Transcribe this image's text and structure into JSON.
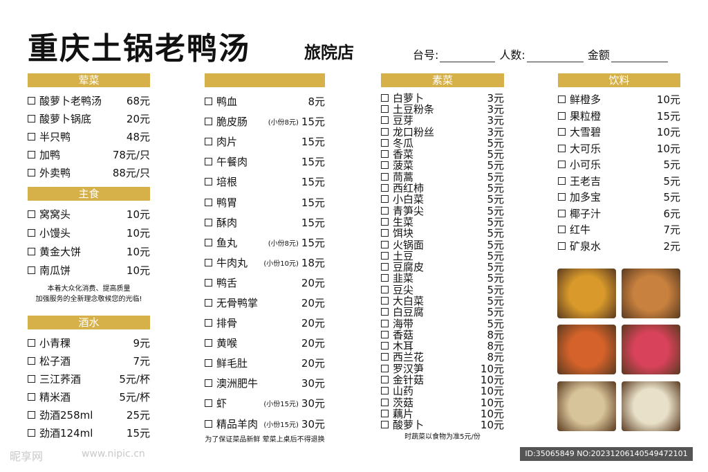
{
  "header": {
    "title": "重庆土锅老鸭汤",
    "branch": "旅院店",
    "fields": [
      {
        "label": "台号:"
      },
      {
        "label": "人数:"
      },
      {
        "label": "金额"
      }
    ]
  },
  "columns": {
    "meat": {
      "title": "荤菜",
      "items": [
        {
          "name": "酸萝卜老鸭汤",
          "price": "68元"
        },
        {
          "name": "酸萝卜锅底",
          "price": "20元"
        },
        {
          "name": "半只鸭",
          "price": "48元"
        },
        {
          "name": "加鸭",
          "price": "78元/只"
        },
        {
          "name": "外卖鸭",
          "price": "88元/只"
        }
      ]
    },
    "staple": {
      "title": "主食",
      "items": [
        {
          "name": "窝窝头",
          "price": "10元"
        },
        {
          "name": "小馒头",
          "price": "10元"
        },
        {
          "name": "黄金大饼",
          "price": "10元"
        },
        {
          "name": "南瓜饼",
          "price": "10元"
        }
      ],
      "note1": "本着大众化消费、提高质量",
      "note2": "加强服务的全新理念敬候您的光临!"
    },
    "alcohol": {
      "title": "酒水",
      "items": [
        {
          "name": "小青稞",
          "price": "9元"
        },
        {
          "name": "松子酒",
          "price": "7元"
        },
        {
          "name": "三江荞酒",
          "price": "5元/杯"
        },
        {
          "name": "精米酒",
          "price": "5元/杯"
        },
        {
          "name": "劲酒258ml",
          "price": "25元"
        },
        {
          "name": "劲酒124ml",
          "price": "15元"
        }
      ]
    },
    "col2": {
      "items": [
        {
          "name": "鸭血",
          "note": "",
          "price": "8元"
        },
        {
          "name": "脆皮肠",
          "note": "(小份8元)",
          "price": "15元"
        },
        {
          "name": "肉片",
          "note": "",
          "price": "15元"
        },
        {
          "name": "午餐肉",
          "note": "",
          "price": "15元"
        },
        {
          "name": "培根",
          "note": "",
          "price": "15元"
        },
        {
          "name": "鸭胃",
          "note": "",
          "price": "15元"
        },
        {
          "name": "酥肉",
          "note": "",
          "price": "15元"
        },
        {
          "name": "鱼丸",
          "note": "(小份8元)",
          "price": "15元"
        },
        {
          "name": "牛肉丸",
          "note": "(小份10元)",
          "price": "18元"
        },
        {
          "name": "鸭舌",
          "note": "",
          "price": "20元"
        },
        {
          "name": "无骨鸭掌",
          "note": "",
          "price": "20元"
        },
        {
          "name": "排骨",
          "note": "",
          "price": "20元"
        },
        {
          "name": "黄喉",
          "note": "",
          "price": "20元"
        },
        {
          "name": "鲜毛肚",
          "note": "",
          "price": "20元"
        },
        {
          "name": "澳洲肥牛",
          "note": "",
          "price": "30元"
        },
        {
          "name": "虾",
          "note": "(小份15元)",
          "price": "30元"
        },
        {
          "name": "精品羊肉",
          "note": "(小份15元)",
          "price": "30元"
        }
      ],
      "note": "为了保证菜品新鲜 荤菜上桌后不得退换"
    },
    "veg": {
      "title": "素菜",
      "items": [
        {
          "name": "白萝卜",
          "price": "3元"
        },
        {
          "name": "土豆粉条",
          "price": "3元"
        },
        {
          "name": "豆芽",
          "price": "3元"
        },
        {
          "name": "龙口粉丝",
          "price": "3元"
        },
        {
          "name": "冬瓜",
          "price": "5元"
        },
        {
          "name": "香菜",
          "price": "5元"
        },
        {
          "name": "菠菜",
          "price": "5元"
        },
        {
          "name": "茼蒿",
          "price": "5元"
        },
        {
          "name": "西红柿",
          "price": "5元"
        },
        {
          "name": "小白菜",
          "price": "5元"
        },
        {
          "name": "青笋尖",
          "price": "5元"
        },
        {
          "name": "生菜",
          "price": "5元"
        },
        {
          "name": "饵块",
          "price": "5元"
        },
        {
          "name": "火锅面",
          "price": "5元"
        },
        {
          "name": "土豆",
          "price": "5元"
        },
        {
          "name": "豆腐皮",
          "price": "5元"
        },
        {
          "name": "韭菜",
          "price": "5元"
        },
        {
          "name": "豆尖",
          "price": "5元"
        },
        {
          "name": "大白菜",
          "price": "5元"
        },
        {
          "name": "白豆腐",
          "price": "5元"
        },
        {
          "name": "海带",
          "price": "5元"
        },
        {
          "name": "香菇",
          "price": "8元"
        },
        {
          "name": "木耳",
          "price": "8元"
        },
        {
          "name": "西兰花",
          "price": "8元"
        },
        {
          "name": "罗汉笋",
          "price": "10元"
        },
        {
          "name": "金针菇",
          "price": "10元"
        },
        {
          "name": "山药",
          "price": "10元"
        },
        {
          "name": "茨菇",
          "price": "10元"
        },
        {
          "name": "藕片",
          "price": "10元"
        },
        {
          "name": "酸萝卜",
          "price": "10元"
        }
      ],
      "note": "时蔬菜以食物为准5元/份"
    },
    "drinks": {
      "title": "饮料",
      "items": [
        {
          "name": "鲜橙多",
          "price": "10元"
        },
        {
          "name": "果粒橙",
          "price": "15元"
        },
        {
          "name": "大雪碧",
          "price": "10元"
        },
        {
          "name": "大可乐",
          "price": "10元"
        },
        {
          "name": "小可乐",
          "price": "5元"
        },
        {
          "name": "王老吉",
          "price": "5元"
        },
        {
          "name": "加多宝",
          "price": "5元"
        },
        {
          "name": "椰子汁",
          "price": "6元"
        },
        {
          "name": "红牛",
          "price": "7元"
        },
        {
          "name": "矿泉水",
          "price": "2元"
        }
      ]
    }
  },
  "footer": {
    "watermark_text": "昵享网",
    "watermark_url": "www.nipic.cn",
    "image_id": "ID:35065849 NO:20231206140549472101"
  },
  "photos": [
    {
      "icon": "soup-pot-photo",
      "color": "#d99a2b"
    },
    {
      "icon": "quail-eggs-photo",
      "color": "#c8813e"
    },
    {
      "icon": "sausages-photo",
      "color": "#d4622a"
    },
    {
      "icon": "beef-slices-photo",
      "color": "#d8425a"
    },
    {
      "icon": "enoki-mushroom-photo",
      "color": "#d8c49a"
    },
    {
      "icon": "tofu-skin-photo",
      "color": "#e8e0c8"
    }
  ]
}
